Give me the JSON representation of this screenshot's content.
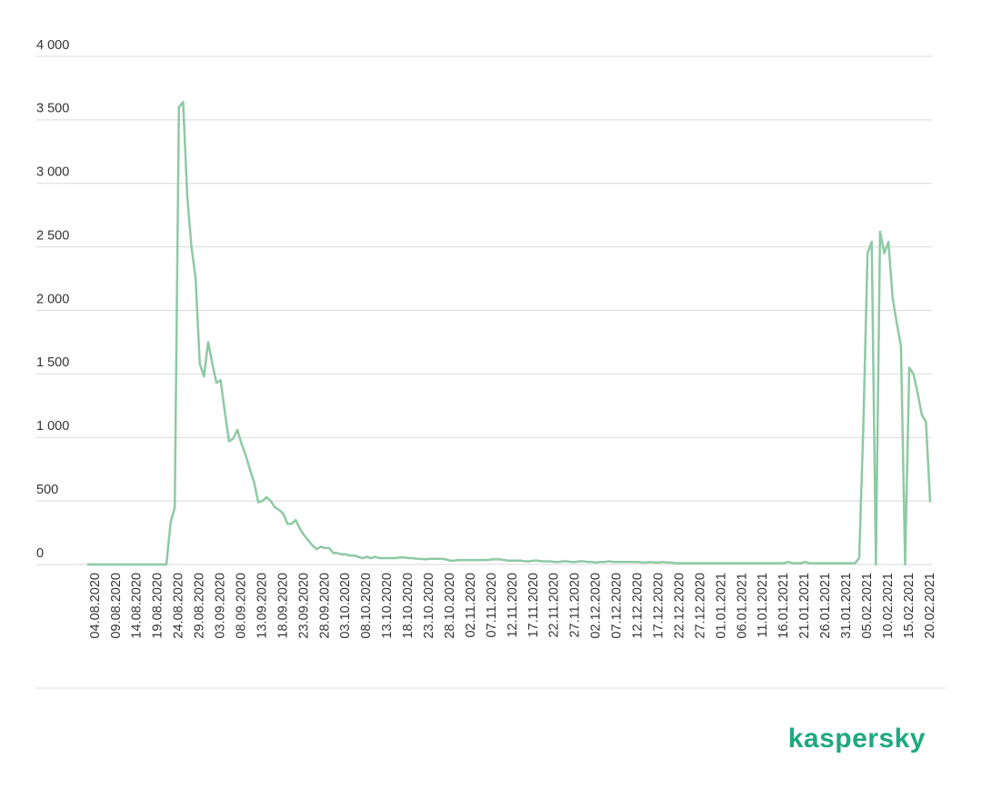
{
  "chart_data": {
    "type": "line",
    "brand": "kaspersky",
    "categories": [
      null,
      null,
      "04.08.2020",
      null,
      null,
      null,
      null,
      "09.08.2020",
      null,
      null,
      null,
      null,
      "14.08.2020",
      null,
      null,
      null,
      null,
      "19.08.2020",
      null,
      null,
      null,
      null,
      "24.08.2020",
      null,
      null,
      null,
      null,
      "29.08.2020",
      null,
      null,
      null,
      null,
      "03.09.2020",
      null,
      null,
      null,
      null,
      "08.09.2020",
      null,
      null,
      null,
      null,
      "13.09.2020",
      null,
      null,
      null,
      null,
      "18.09.2020",
      null,
      null,
      null,
      null,
      "23.09.2020",
      null,
      null,
      null,
      null,
      "28.09.2020",
      null,
      null,
      null,
      null,
      "03.10.2020",
      null,
      null,
      null,
      null,
      "08.10.2020",
      null,
      null,
      null,
      null,
      "13.10.2020",
      null,
      null,
      null,
      null,
      "18.10.2020",
      null,
      null,
      null,
      null,
      "23.10.2020",
      null,
      null,
      null,
      null,
      "28.10.2020",
      null,
      null,
      null,
      null,
      "02.11.2020",
      null,
      null,
      null,
      null,
      "07.11.2020",
      null,
      null,
      null,
      null,
      "12.11.2020",
      null,
      null,
      null,
      null,
      "17.11.2020",
      null,
      null,
      null,
      null,
      "22.11.2020",
      null,
      null,
      null,
      null,
      "27.11.2020",
      null,
      null,
      null,
      null,
      "02.12.2020",
      null,
      null,
      null,
      null,
      "07.12.2020",
      null,
      null,
      null,
      null,
      "12.12.2020",
      null,
      null,
      null,
      null,
      "17.12.2020",
      null,
      null,
      null,
      null,
      "22.12.2020",
      null,
      null,
      null,
      null,
      "27.12.2020",
      null,
      null,
      null,
      null,
      "01.01.2021",
      null,
      null,
      null,
      null,
      "06.01.2021",
      null,
      null,
      null,
      null,
      "11.01.2021",
      null,
      null,
      null,
      null,
      "16.01.2021",
      null,
      null,
      null,
      null,
      "21.01.2021",
      null,
      null,
      null,
      null,
      "26.01.2021",
      null,
      null,
      null,
      null,
      "31.01.2021",
      null,
      null,
      null,
      null,
      "05.02.2021",
      null,
      null,
      null,
      null,
      "10.02.2021",
      null,
      null,
      null,
      null,
      "15.02.2021",
      null,
      null,
      null,
      null,
      "20.02.2021"
    ],
    "series": [
      {
        "color": "#8ec9a5",
        "values": [
          0,
          0,
          0,
          0,
          0,
          0,
          0,
          0,
          0,
          0,
          0,
          0,
          0,
          0,
          0,
          0,
          0,
          0,
          0,
          0,
          330,
          450,
          3600,
          3640,
          2900,
          2500,
          2250,
          1580,
          1480,
          1750,
          1580,
          1430,
          1450,
          1200,
          970,
          990,
          1060,
          950,
          860,
          750,
          650,
          490,
          500,
          530,
          500,
          450,
          430,
          400,
          320,
          320,
          350,
          280,
          230,
          190,
          150,
          120,
          140,
          130,
          130,
          90,
          90,
          80,
          80,
          70,
          70,
          60,
          50,
          60,
          50,
          60,
          50,
          50,
          50,
          50,
          50,
          55,
          55,
          50,
          50,
          45,
          45,
          40,
          45,
          45,
          45,
          45,
          40,
          30,
          30,
          35,
          35,
          35,
          35,
          35,
          35,
          35,
          35,
          40,
          40,
          40,
          35,
          30,
          30,
          30,
          30,
          25,
          25,
          30,
          30,
          25,
          25,
          25,
          20,
          20,
          25,
          25,
          20,
          20,
          25,
          25,
          20,
          20,
          15,
          20,
          20,
          25,
          20,
          20,
          20,
          20,
          20,
          20,
          20,
          15,
          15,
          20,
          15,
          15,
          20,
          15,
          15,
          10,
          10,
          10,
          10,
          10,
          10,
          10,
          10,
          10,
          10,
          10,
          10,
          10,
          10,
          10,
          10,
          10,
          10,
          10,
          10,
          10,
          10,
          10,
          10,
          10,
          10,
          10,
          20,
          10,
          10,
          10,
          20,
          10,
          10,
          10,
          10,
          10,
          10,
          10,
          10,
          10,
          10,
          10,
          10,
          50,
          1100,
          2450,
          2540,
          0,
          2620,
          2450,
          2540,
          2100,
          1900,
          1720,
          0,
          1550,
          1500,
          1350,
          1180,
          1120,
          490
        ]
      }
    ],
    "ylim": [
      0,
      4000
    ],
    "yticks": [
      0,
      500,
      {
        "value": 1000,
        "label": "1 000"
      },
      {
        "value": 1500,
        "label": "1 500"
      },
      {
        "value": 2000,
        "label": "2 000"
      },
      {
        "value": 2500,
        "label": "2 500"
      },
      {
        "value": 3000,
        "label": "3 000"
      },
      {
        "value": 3500,
        "label": "3 500"
      },
      {
        "value": 4000,
        "label": "4 000"
      }
    ],
    "grid": true
  }
}
